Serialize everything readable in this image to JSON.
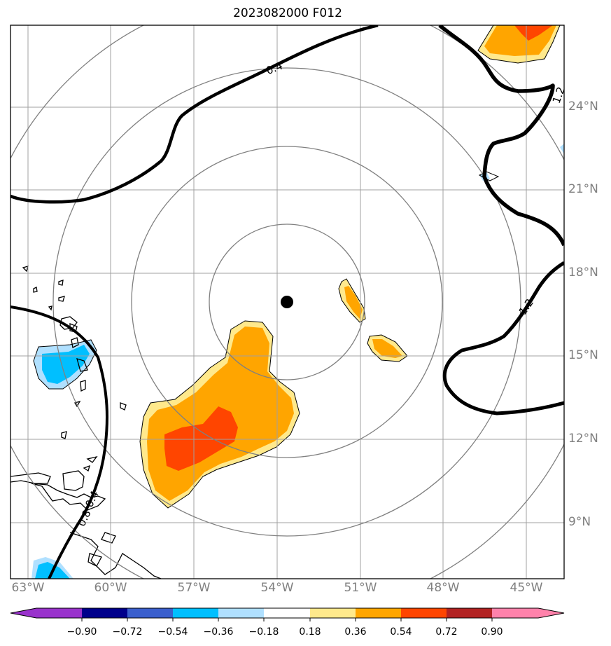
{
  "title": "2023082000 F012",
  "lat_labels": [
    "24°N",
    "21°N",
    "18°N",
    "15°N",
    "12°N",
    "9°N"
  ],
  "lon_labels": [
    "63°W",
    "60°W",
    "57°W",
    "54°W",
    "51°W",
    "48°W",
    "45°W"
  ],
  "contour_labels": [
    "0.4",
    "1.2",
    "1.2",
    "0.4",
    "0.8"
  ],
  "colorbar": {
    "ticks": [
      "−0.90",
      "−0.72",
      "−0.54",
      "−0.36",
      "−0.18",
      "0.18",
      "0.36",
      "0.54",
      "0.72",
      "0.90"
    ],
    "colors": [
      "#9932cc",
      "#00008b",
      "#3a5fcd",
      "#00bfff",
      "#b0e0ff",
      "#ffffff",
      "#ffe98c",
      "#ffa500",
      "#ff4500",
      "#b22222",
      "#ff82ab"
    ]
  },
  "map_colors": {
    "light_yellow": "#ffe98c",
    "orange": "#ffa500",
    "red_orange": "#ff4500",
    "cyan": "#00bfff",
    "light_blue": "#b0e0ff"
  },
  "center_marker": "storm-center"
}
